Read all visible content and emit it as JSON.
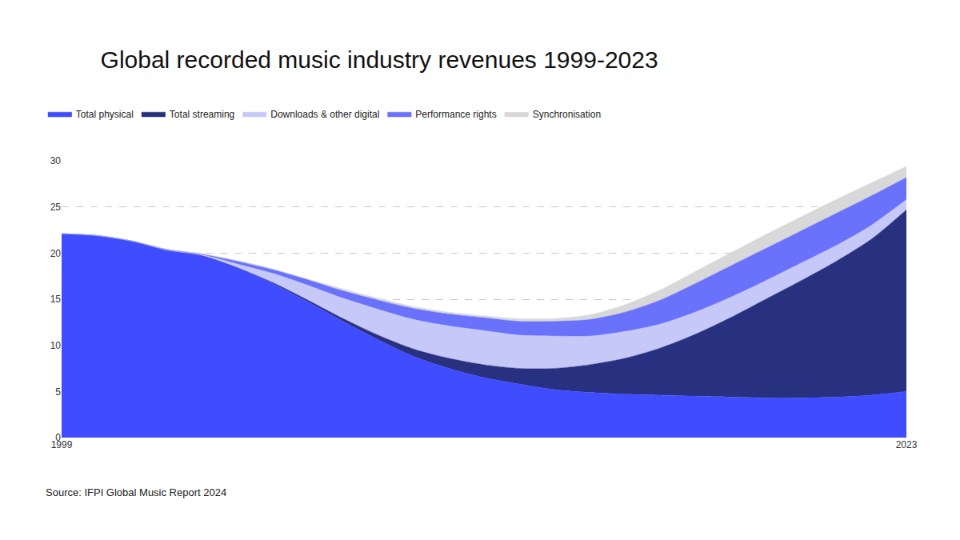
{
  "chart_data": {
    "type": "area",
    "title": "Global recorded music industry revenues 1999-2023",
    "source": "Source: IFPI Global Music Report 2024",
    "x": [
      1999,
      2000,
      2001,
      2002,
      2003,
      2004,
      2005,
      2006,
      2007,
      2008,
      2009,
      2010,
      2011,
      2012,
      2013,
      2014,
      2015,
      2016,
      2017,
      2018,
      2019,
      2020,
      2021,
      2022,
      2023
    ],
    "series": [
      {
        "name": "Total physical",
        "color": "#3f4cff",
        "values": [
          22.1,
          21.9,
          21.3,
          20.3,
          19.7,
          18.4,
          16.7,
          14.7,
          12.6,
          10.6,
          8.8,
          7.5,
          6.5,
          5.8,
          5.2,
          4.9,
          4.7,
          4.6,
          4.5,
          4.4,
          4.3,
          4.3,
          4.4,
          4.6,
          5.0
        ]
      },
      {
        "name": "Total streaming",
        "color": "#283080",
        "values": [
          0,
          0,
          0,
          0,
          0,
          0,
          0.1,
          0.2,
          0.3,
          0.5,
          0.8,
          1.1,
          1.4,
          1.7,
          2.3,
          3.0,
          3.9,
          5.1,
          6.7,
          8.6,
          10.7,
          12.7,
          14.7,
          16.9,
          19.7
        ]
      },
      {
        "name": "Downloads & other digital",
        "color": "#c6c9f8",
        "values": [
          0,
          0,
          0,
          0,
          0.1,
          0.4,
          1.0,
          1.6,
          2.2,
          2.8,
          3.2,
          3.5,
          3.7,
          3.6,
          3.5,
          3.1,
          2.9,
          2.6,
          2.4,
          2.2,
          2.0,
          1.9,
          1.7,
          1.5,
          1.1
        ]
      },
      {
        "name": "Performance rights",
        "color": "#6a72fb",
        "values": [
          0,
          0,
          0,
          0.1,
          0.1,
          0.3,
          0.4,
          0.6,
          0.8,
          1.0,
          1.2,
          1.3,
          1.4,
          1.5,
          1.6,
          1.8,
          2.1,
          2.6,
          3.1,
          3.4,
          3.5,
          3.5,
          3.5,
          3.2,
          2.4
        ]
      },
      {
        "name": "Synchronisation",
        "color": "#d8d8d8",
        "values": [
          0,
          0,
          0,
          0,
          0,
          0.1,
          0.1,
          0.1,
          0.2,
          0.2,
          0.2,
          0.2,
          0.2,
          0.3,
          0.3,
          0.5,
          0.8,
          1.1,
          1.3,
          1.4,
          1.5,
          1.5,
          1.5,
          1.4,
          1.2
        ]
      }
    ],
    "xlim": [
      1999,
      2023
    ],
    "xticks": [
      1999,
      2023
    ],
    "ylim": [
      0,
      30
    ],
    "yticks": [
      0,
      5,
      10,
      15,
      20,
      25,
      30
    ],
    "grid": true,
    "stacked": true,
    "legend": "top"
  }
}
